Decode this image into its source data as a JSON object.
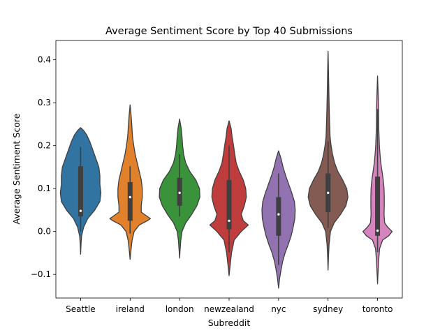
{
  "chart_data": {
    "type": "violin",
    "title": "Average Sentiment Score by Top 40 Submissions",
    "xlabel": "Subreddit",
    "ylabel": "Average Sentiment Score",
    "ylim": [
      -0.155,
      0.445
    ],
    "yticks": [
      -0.1,
      0.0,
      0.1,
      0.2,
      0.3,
      0.4
    ],
    "ytick_labels": [
      "−0.1",
      "0.0",
      "0.1",
      "0.2",
      "0.3",
      "0.4"
    ],
    "grid": false,
    "legend": "none",
    "categories": [
      "Seattle",
      "ireland",
      "london",
      "newzealand",
      "nyc",
      "sydney",
      "toronto"
    ],
    "series": [
      {
        "name": "Seattle",
        "color": "#3274a1",
        "violin_min": -0.053,
        "violin_max": 0.242,
        "whisker_low": 0.0,
        "q1": 0.035,
        "median": 0.048,
        "q3": 0.152,
        "whisker_high": 0.197,
        "density": [
          [
            -0.053,
            0.0
          ],
          [
            -0.03,
            0.02
          ],
          [
            -0.01,
            0.05
          ],
          [
            0.01,
            0.15
          ],
          [
            0.03,
            0.35
          ],
          [
            0.05,
            0.7
          ],
          [
            0.07,
            0.95
          ],
          [
            0.09,
            1.0
          ],
          [
            0.11,
            0.95
          ],
          [
            0.13,
            0.95
          ],
          [
            0.15,
            0.9
          ],
          [
            0.17,
            0.75
          ],
          [
            0.19,
            0.6
          ],
          [
            0.21,
            0.45
          ],
          [
            0.225,
            0.3
          ],
          [
            0.235,
            0.15
          ],
          [
            0.242,
            0.0
          ]
        ]
      },
      {
        "name": "ireland",
        "color": "#e1812c",
        "violin_min": -0.065,
        "violin_max": 0.295,
        "whisker_low": -0.005,
        "q1": 0.025,
        "median": 0.08,
        "q3": 0.115,
        "whisker_high": 0.152,
        "density": [
          [
            -0.065,
            0.0
          ],
          [
            -0.04,
            0.05
          ],
          [
            -0.02,
            0.1
          ],
          [
            0.0,
            0.2
          ],
          [
            0.015,
            0.45
          ],
          [
            0.025,
            0.85
          ],
          [
            0.03,
            1.0
          ],
          [
            0.035,
            0.85
          ],
          [
            0.045,
            0.55
          ],
          [
            0.06,
            0.55
          ],
          [
            0.08,
            0.6
          ],
          [
            0.1,
            0.6
          ],
          [
            0.12,
            0.55
          ],
          [
            0.14,
            0.45
          ],
          [
            0.16,
            0.35
          ],
          [
            0.18,
            0.25
          ],
          [
            0.2,
            0.18
          ],
          [
            0.22,
            0.12
          ],
          [
            0.25,
            0.08
          ],
          [
            0.27,
            0.05
          ],
          [
            0.295,
            0.0
          ]
        ]
      },
      {
        "name": "london",
        "color": "#3a923a",
        "violin_min": -0.062,
        "violin_max": 0.262,
        "whisker_low": 0.035,
        "q1": 0.06,
        "median": 0.09,
        "q3": 0.125,
        "whisker_high": 0.18,
        "density": [
          [
            -0.062,
            0.0
          ],
          [
            -0.04,
            0.03
          ],
          [
            -0.02,
            0.06
          ],
          [
            0.0,
            0.12
          ],
          [
            0.02,
            0.3
          ],
          [
            0.04,
            0.6
          ],
          [
            0.06,
            0.85
          ],
          [
            0.08,
            1.0
          ],
          [
            0.1,
            0.98
          ],
          [
            0.12,
            0.8
          ],
          [
            0.14,
            0.5
          ],
          [
            0.16,
            0.3
          ],
          [
            0.18,
            0.2
          ],
          [
            0.2,
            0.15
          ],
          [
            0.22,
            0.12
          ],
          [
            0.24,
            0.08
          ],
          [
            0.262,
            0.0
          ]
        ]
      },
      {
        "name": "newzealand",
        "color": "#c03d3e",
        "violin_min": -0.103,
        "violin_max": 0.258,
        "whisker_low": -0.048,
        "q1": 0.005,
        "median": 0.025,
        "q3": 0.12,
        "whisker_high": 0.2,
        "density": [
          [
            -0.103,
            0.0
          ],
          [
            -0.08,
            0.05
          ],
          [
            -0.05,
            0.12
          ],
          [
            -0.02,
            0.25
          ],
          [
            0.0,
            0.6
          ],
          [
            0.015,
            0.95
          ],
          [
            0.025,
            0.7
          ],
          [
            0.04,
            0.6
          ],
          [
            0.06,
            0.75
          ],
          [
            0.08,
            0.85
          ],
          [
            0.1,
            0.82
          ],
          [
            0.12,
            0.7
          ],
          [
            0.14,
            0.5
          ],
          [
            0.16,
            0.35
          ],
          [
            0.18,
            0.28
          ],
          [
            0.2,
            0.22
          ],
          [
            0.22,
            0.15
          ],
          [
            0.24,
            0.1
          ],
          [
            0.258,
            0.0
          ]
        ]
      },
      {
        "name": "nyc",
        "color": "#9372b2",
        "violin_min": -0.132,
        "violin_max": 0.188,
        "whisker_low": -0.078,
        "q1": -0.01,
        "median": 0.04,
        "q3": 0.08,
        "whisker_high": 0.135,
        "density": [
          [
            -0.132,
            0.0
          ],
          [
            -0.11,
            0.05
          ],
          [
            -0.09,
            0.12
          ],
          [
            -0.07,
            0.2
          ],
          [
            -0.05,
            0.32
          ],
          [
            -0.03,
            0.48
          ],
          [
            -0.01,
            0.62
          ],
          [
            0.01,
            0.72
          ],
          [
            0.03,
            0.8
          ],
          [
            0.05,
            0.82
          ],
          [
            0.07,
            0.78
          ],
          [
            0.09,
            0.65
          ],
          [
            0.11,
            0.5
          ],
          [
            0.13,
            0.35
          ],
          [
            0.15,
            0.22
          ],
          [
            0.17,
            0.12
          ],
          [
            0.188,
            0.0
          ]
        ]
      },
      {
        "name": "sydney",
        "color": "#845b53",
        "violin_min": -0.09,
        "violin_max": 0.42,
        "whisker_low": 0.008,
        "q1": 0.045,
        "median": 0.09,
        "q3": 0.135,
        "whisker_high": 0.21,
        "density": [
          [
            -0.09,
            0.0
          ],
          [
            -0.06,
            0.02
          ],
          [
            -0.03,
            0.05
          ],
          [
            0.0,
            0.12
          ],
          [
            0.02,
            0.3
          ],
          [
            0.04,
            0.62
          ],
          [
            0.06,
            0.88
          ],
          [
            0.08,
            0.98
          ],
          [
            0.1,
            0.92
          ],
          [
            0.12,
            0.72
          ],
          [
            0.14,
            0.48
          ],
          [
            0.16,
            0.32
          ],
          [
            0.18,
            0.22
          ],
          [
            0.2,
            0.15
          ],
          [
            0.22,
            0.1
          ],
          [
            0.26,
            0.07
          ],
          [
            0.3,
            0.05
          ],
          [
            0.35,
            0.03
          ],
          [
            0.4,
            0.01
          ],
          [
            0.42,
            0.0
          ]
        ]
      },
      {
        "name": "toronto",
        "color": "#d684bd",
        "violin_min": -0.122,
        "violin_max": 0.362,
        "whisker_low": -0.048,
        "q1": -0.01,
        "median": 0.002,
        "q3": 0.128,
        "whisker_high": 0.285,
        "density": [
          [
            -0.122,
            0.0
          ],
          [
            -0.1,
            0.02
          ],
          [
            -0.07,
            0.05
          ],
          [
            -0.04,
            0.1
          ],
          [
            -0.02,
            0.25
          ],
          [
            -0.01,
            0.55
          ],
          [
            0.0,
            0.72
          ],
          [
            0.01,
            0.5
          ],
          [
            0.02,
            0.35
          ],
          [
            0.04,
            0.32
          ],
          [
            0.06,
            0.33
          ],
          [
            0.08,
            0.33
          ],
          [
            0.1,
            0.32
          ],
          [
            0.12,
            0.28
          ],
          [
            0.14,
            0.22
          ],
          [
            0.16,
            0.16
          ],
          [
            0.18,
            0.12
          ],
          [
            0.2,
            0.09
          ],
          [
            0.24,
            0.06
          ],
          [
            0.28,
            0.05
          ],
          [
            0.32,
            0.03
          ],
          [
            0.362,
            0.0
          ]
        ]
      }
    ]
  }
}
